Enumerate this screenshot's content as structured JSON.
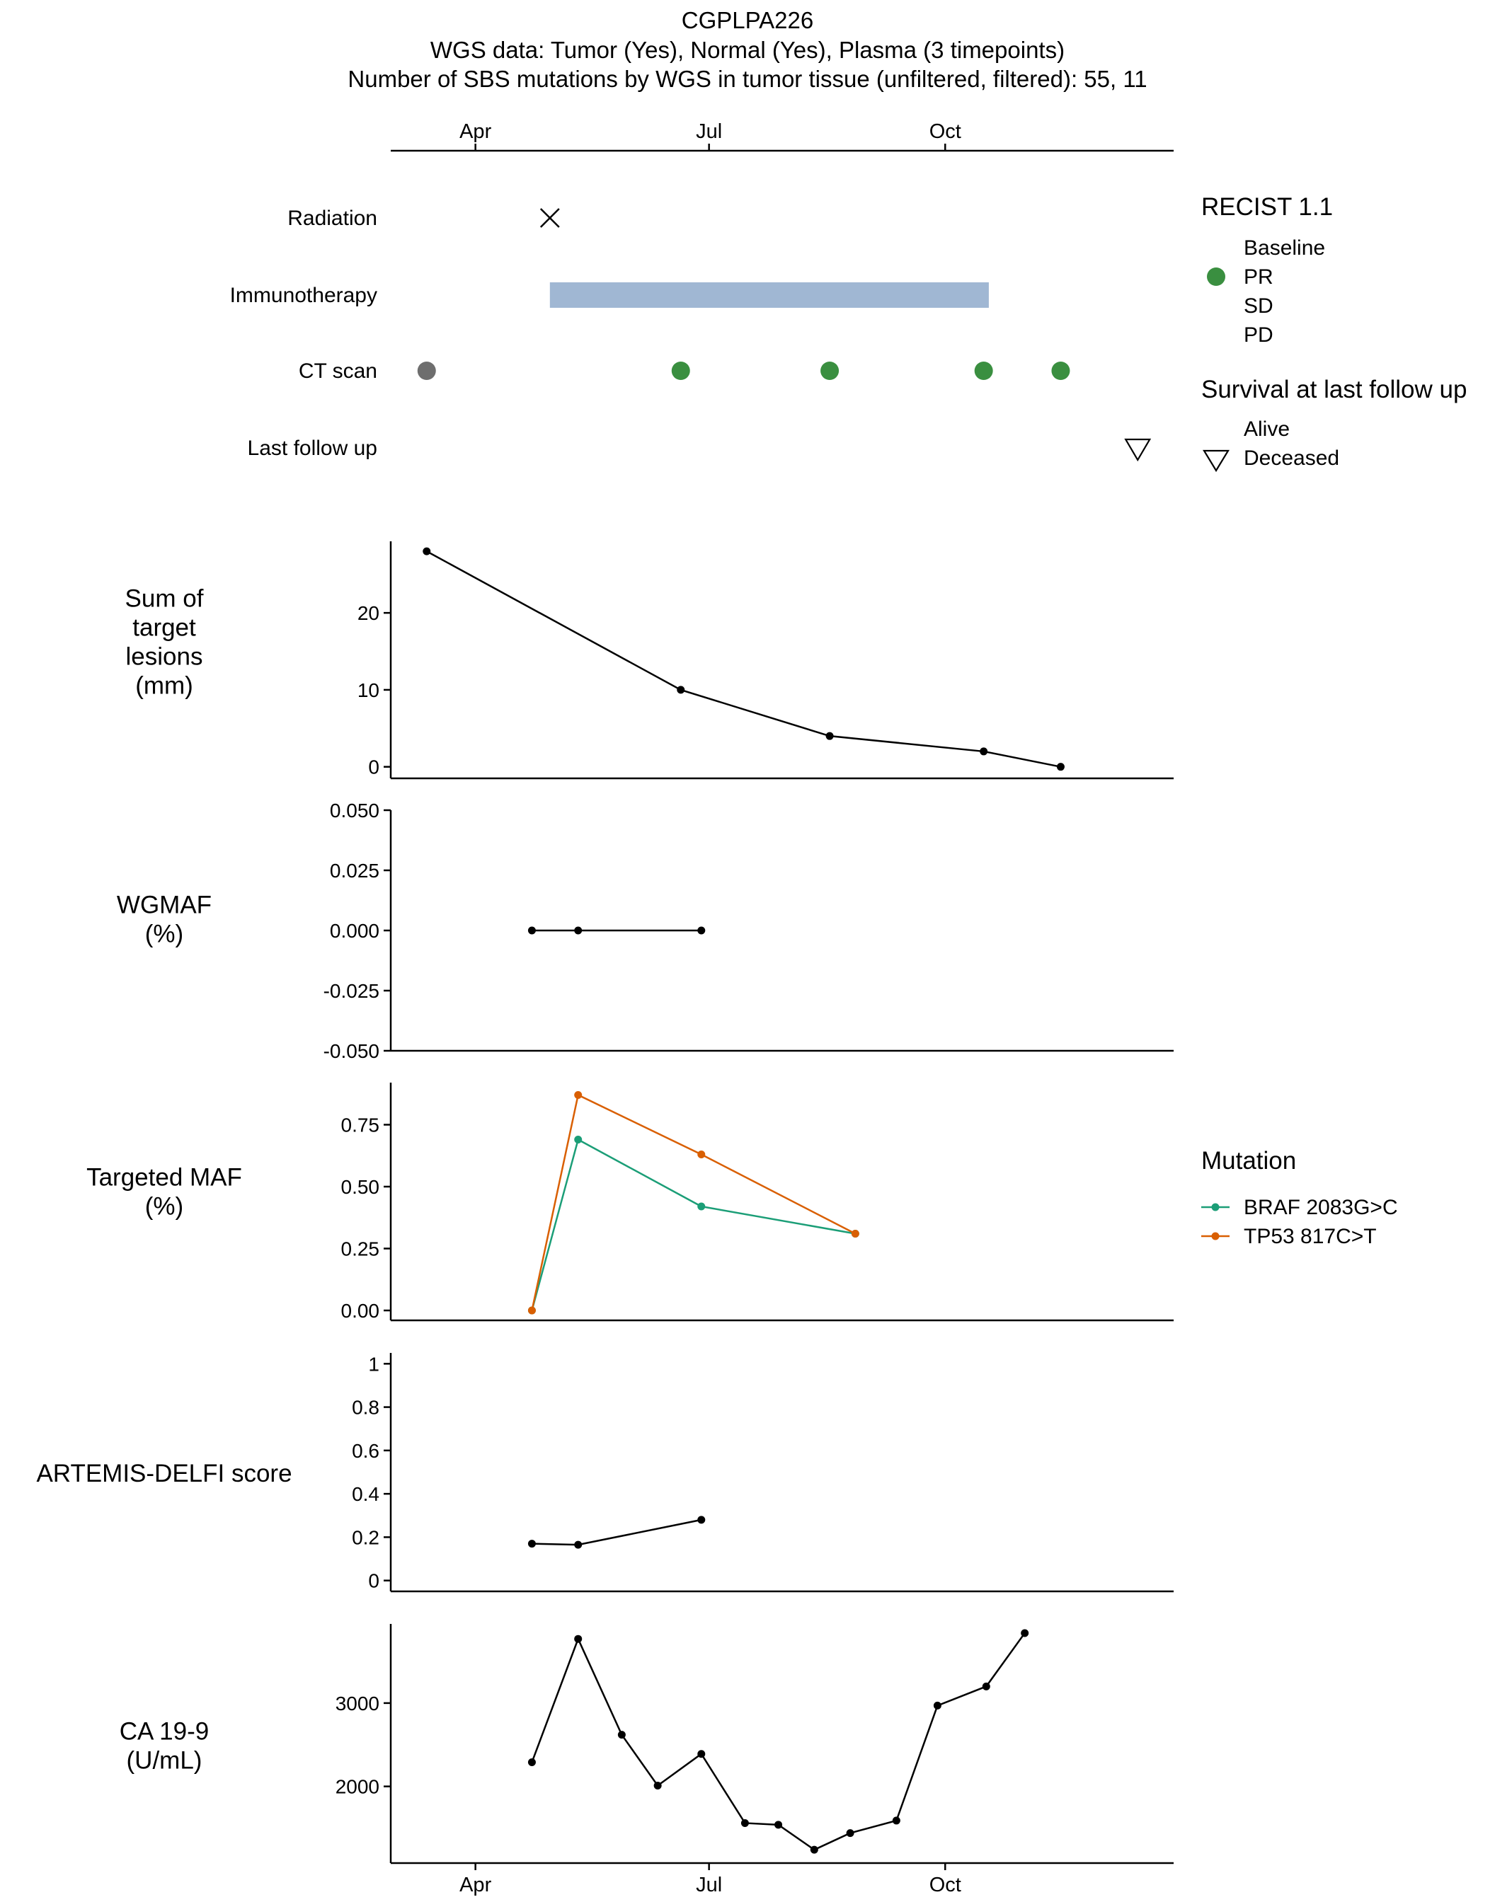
{
  "title": {
    "line1": "CGPLPA226",
    "line2": "WGS data: Tumor (Yes), Normal (Yes), Plasma (3 timepoints)",
    "line3": "Number of SBS mutations by WGS in tumor tissue (unfiltered, filtered): 55, 11"
  },
  "time_axis": {
    "labels": [
      "Apr",
      "Jul",
      "Oct"
    ],
    "label_days": [
      0,
      91,
      183
    ],
    "range_days": [
      -33,
      272
    ]
  },
  "colors": {
    "baseline": "#6e6e6e",
    "pr": "#3a8f40",
    "immunotherapy": "#a0b7d3",
    "braf": "#1b9e77",
    "tp53": "#d95f02",
    "line": "#000000"
  },
  "chart_data": [
    {
      "type": "timeline",
      "rows": [
        "Radiation",
        "Immunotherapy",
        "CT scan",
        "Last follow up"
      ],
      "radiation_days": [
        29
      ],
      "immunotherapy_span_days": [
        29,
        200
      ],
      "ct_scans": [
        {
          "day": -19,
          "recist": "Baseline"
        },
        {
          "day": 80,
          "recist": "PR"
        },
        {
          "day": 138,
          "recist": "PR"
        },
        {
          "day": 198,
          "recist": "PR"
        },
        {
          "day": 228,
          "recist": "PR"
        }
      ],
      "last_follow_up": {
        "day": 258,
        "status": "Deceased"
      },
      "legend_recist": {
        "title": "RECIST 1.1",
        "items": [
          "Baseline",
          "PR",
          "SD",
          "PD"
        ]
      },
      "legend_survival": {
        "title": "Survival at last follow up",
        "items": [
          "Alive",
          "Deceased"
        ]
      }
    },
    {
      "type": "line",
      "ylabel": [
        "Sum of",
        "target",
        "lesions",
        "(mm)"
      ],
      "ylim": [
        -1.5,
        29.3
      ],
      "yticks": [
        0,
        10,
        20
      ],
      "ytick_labels": [
        "0",
        "10",
        "20"
      ],
      "series": [
        {
          "x": [
            -19,
            80,
            138,
            198,
            228
          ],
          "y": [
            28,
            10,
            4,
            2,
            0
          ],
          "color": "#000000"
        }
      ]
    },
    {
      "type": "line",
      "ylabel": [
        "WGMAF",
        "(%)"
      ],
      "ylim": [
        -0.05,
        0.05
      ],
      "yticks": [
        -0.05,
        -0.025,
        0,
        0.025,
        0.05
      ],
      "ytick_labels": [
        "-0.050",
        "-0.025",
        "0.000",
        "0.025",
        "0.050"
      ],
      "series": [
        {
          "x": [
            22,
            40,
            88
          ],
          "y": [
            0,
            0,
            0
          ],
          "color": "#000000"
        }
      ]
    },
    {
      "type": "line",
      "ylabel": [
        "Targeted MAF",
        "(%)"
      ],
      "ylim": [
        -0.04,
        0.92
      ],
      "yticks": [
        0,
        0.25,
        0.5,
        0.75
      ],
      "ytick_labels": [
        "0.00",
        "0.25",
        "0.50",
        "0.75"
      ],
      "legend_title": "Mutation",
      "series": [
        {
          "name": "BRAF 2083G>C",
          "x": [
            22,
            40,
            88,
            148
          ],
          "y": [
            0,
            0.69,
            0.42,
            0.31
          ],
          "color": "#1b9e77"
        },
        {
          "name": "TP53 817C>T",
          "x": [
            22,
            40,
            88,
            148
          ],
          "y": [
            0,
            0.87,
            0.63,
            0.31
          ],
          "color": "#d95f02"
        }
      ]
    },
    {
      "type": "line",
      "ylabel": [
        "ARTEMIS-DELFI score"
      ],
      "ylim": [
        -0.05,
        1.05
      ],
      "yticks": [
        0,
        0.2,
        0.4,
        0.6,
        0.8,
        1
      ],
      "ytick_labels": [
        "0",
        "0.2",
        "0.4",
        "0.6",
        "0.8",
        "1"
      ],
      "series": [
        {
          "x": [
            22,
            40,
            88
          ],
          "y": [
            0.17,
            0.165,
            0.28
          ],
          "color": "#000000"
        }
      ]
    },
    {
      "type": "line",
      "ylabel": [
        "CA 19-9",
        "(U/mL)"
      ],
      "ylim": [
        1080,
        3950
      ],
      "yticks": [
        2000,
        3000
      ],
      "ytick_labels": [
        "2000",
        "3000"
      ],
      "series": [
        {
          "x": [
            22,
            40,
            57,
            71,
            88,
            105,
            118,
            132,
            146,
            164,
            180,
            199,
            214
          ],
          "y": [
            2290,
            3770,
            2620,
            2010,
            2390,
            1560,
            1540,
            1240,
            1440,
            1590,
            2970,
            3200,
            3840
          ],
          "color": "#000000"
        }
      ]
    }
  ]
}
